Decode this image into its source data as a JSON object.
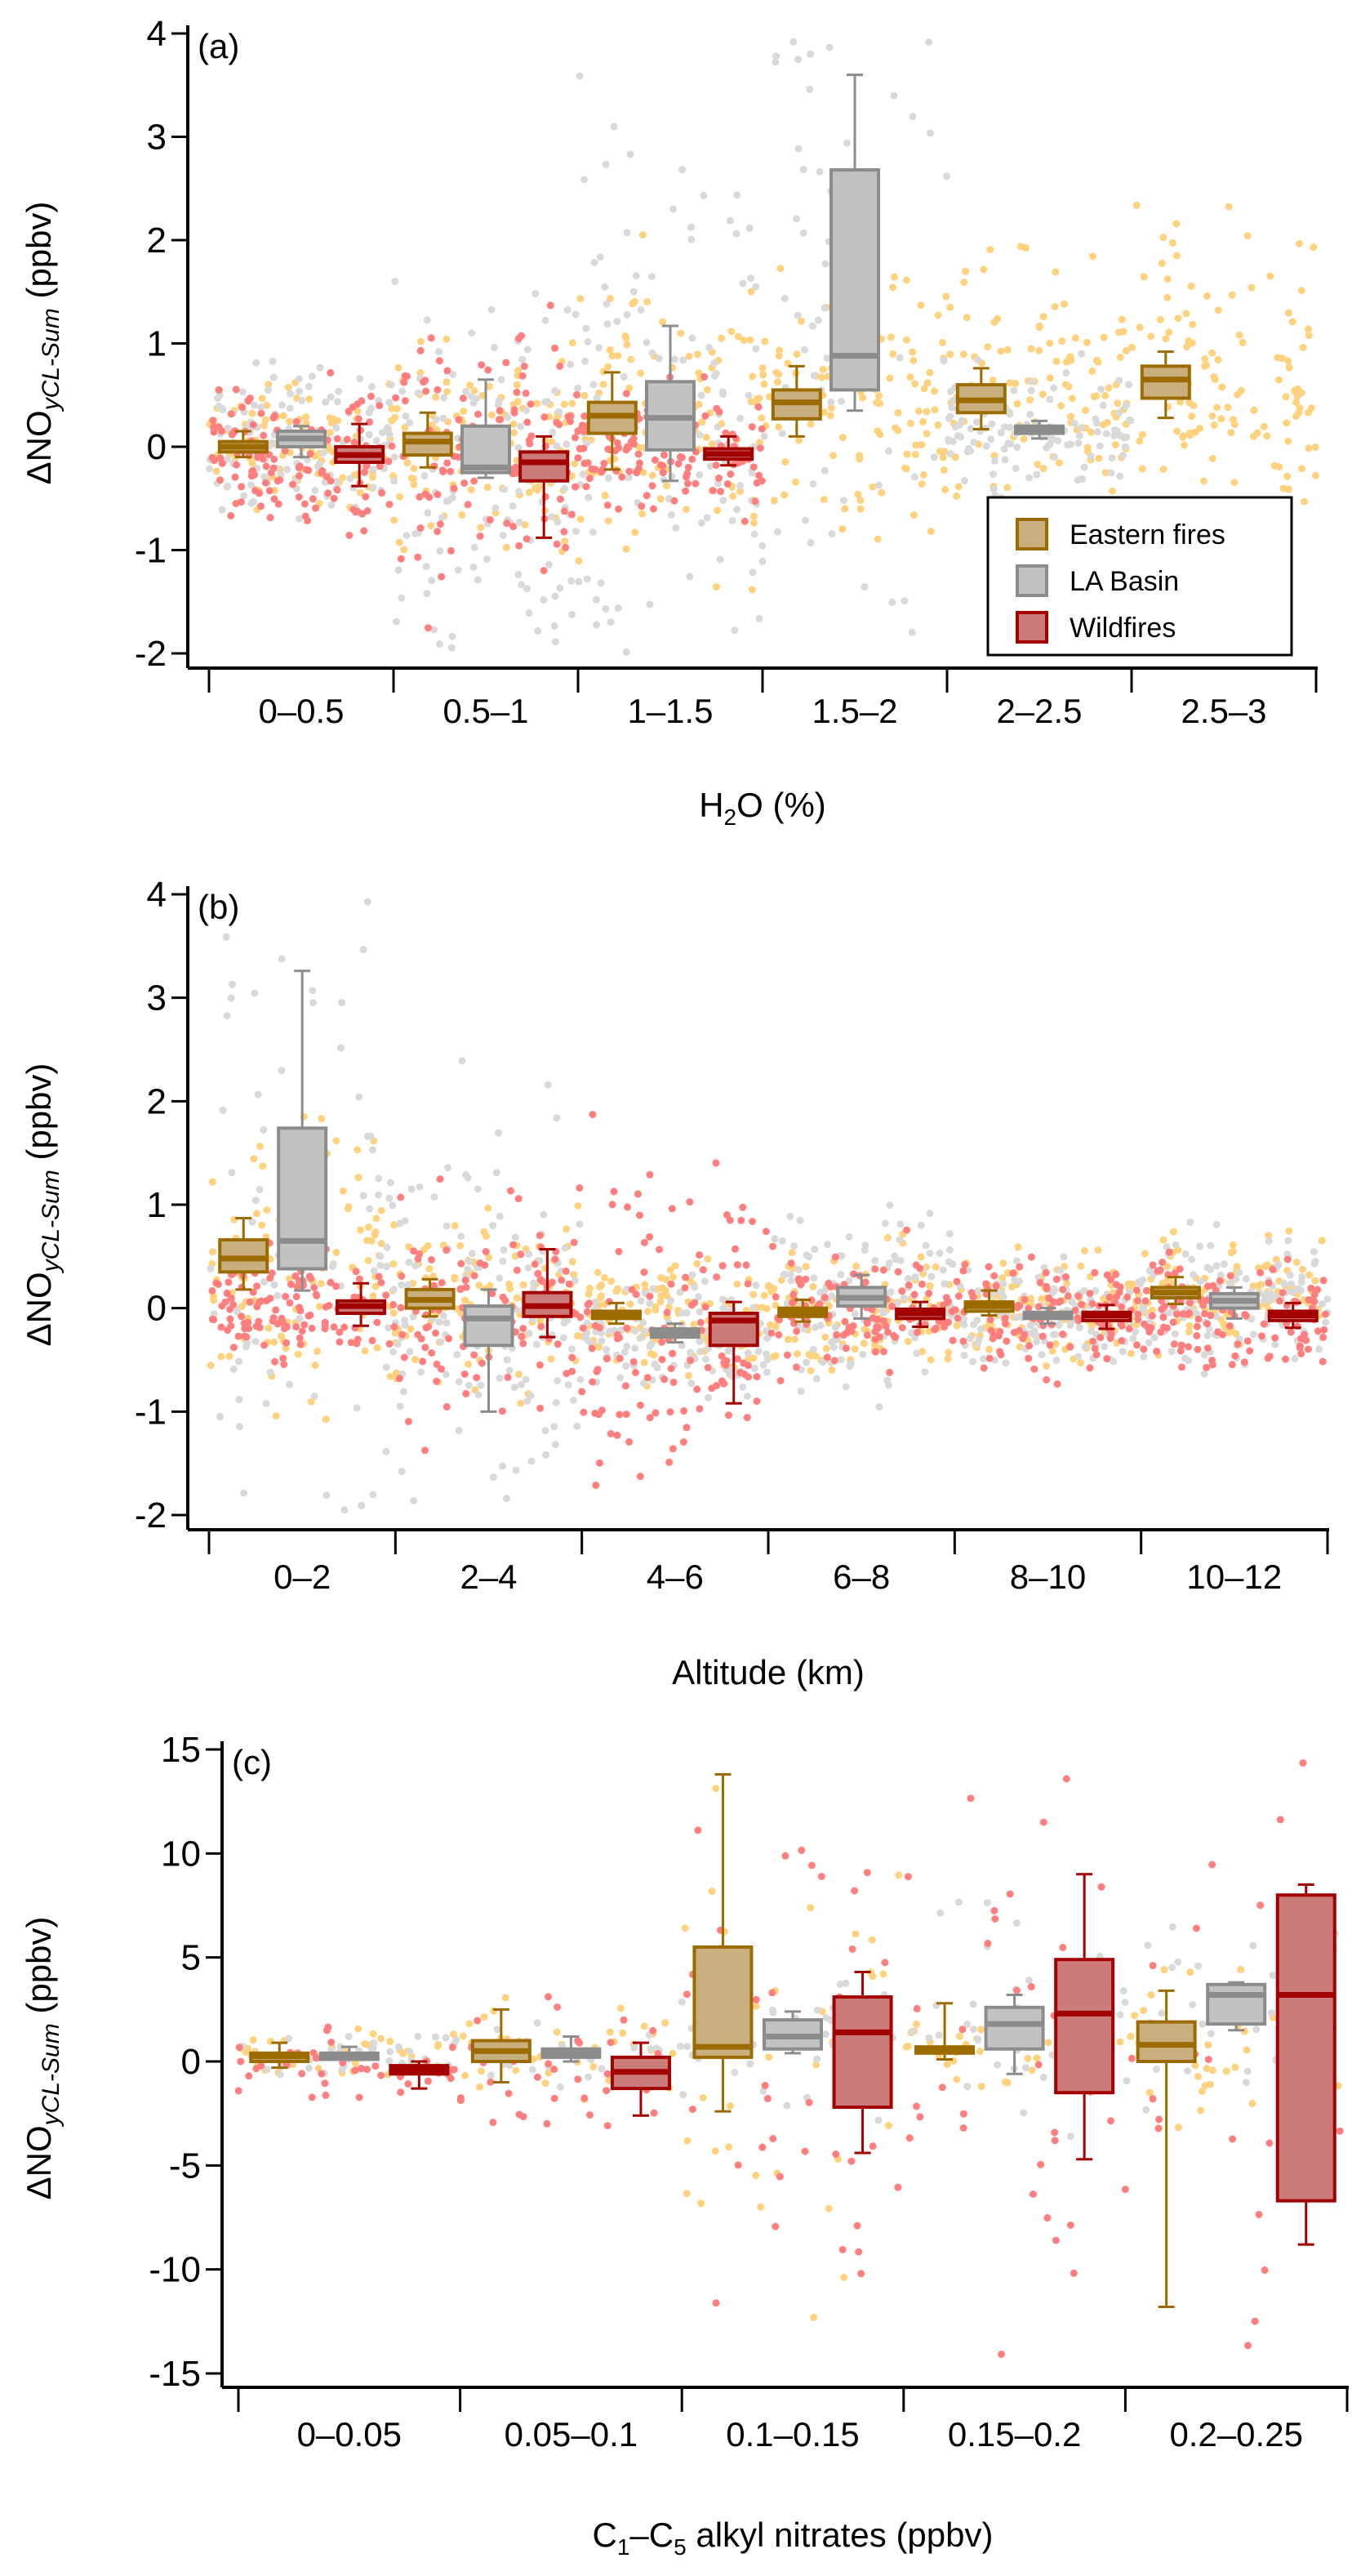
{
  "colors": {
    "eastern_fill": "#c9ae7e",
    "eastern_stroke": "#9c6b00",
    "eastern_points": "#ffd27f",
    "la_fill": "#c2c2c2",
    "la_stroke": "#8c8c8c",
    "la_points": "#d9d9d9",
    "wild_fill": "#cc7b7b",
    "wild_stroke": "#a30000",
    "wild_points": "#ff7f7f"
  },
  "legend": {
    "placement": "lower-right of panel (a)",
    "entries": [
      "Eastern fires",
      "LA Basin",
      "Wildfires"
    ]
  },
  "y_title": {
    "main": "ΔNO",
    "sub": "yCL-Sum",
    "unit": " (ppbv)"
  },
  "chart_data": [
    {
      "type": "box",
      "panel_label": "(a)",
      "xlabel": {
        "pre": "H",
        "sub": "2",
        "post": "O (%)"
      },
      "ylim": [
        -2,
        4
      ],
      "yticks": [
        -2,
        -1,
        0,
        1,
        2,
        3,
        4
      ],
      "categories": [
        "0–0.5",
        "0.5–1",
        "1–1.5",
        "1.5–2",
        "2–2.5",
        "2.5–3"
      ],
      "stats_order": [
        "whisker_low",
        "q1",
        "median",
        "q3",
        "whisker_high"
      ],
      "series": [
        {
          "name": "Eastern fires",
          "boxes": [
            [
              -0.1,
              -0.05,
              0.0,
              0.05,
              0.15
            ],
            [
              -0.2,
              -0.08,
              0.05,
              0.13,
              0.33
            ],
            [
              -0.22,
              0.13,
              0.3,
              0.43,
              0.72
            ],
            [
              0.1,
              0.27,
              0.43,
              0.55,
              0.78
            ],
            [
              0.17,
              0.33,
              0.45,
              0.6,
              0.76
            ],
            [
              0.28,
              0.47,
              0.65,
              0.78,
              0.92
            ]
          ]
        },
        {
          "name": "LA Basin",
          "boxes": [
            [
              -0.1,
              0.0,
              0.08,
              0.15,
              0.2
            ],
            [
              -0.3,
              -0.25,
              -0.2,
              0.2,
              0.65
            ],
            [
              -0.33,
              -0.03,
              0.28,
              0.63,
              1.17
            ],
            [
              0.35,
              0.55,
              0.88,
              2.68,
              3.6
            ],
            [
              0.08,
              0.13,
              0.17,
              0.2,
              0.25
            ],
            null
          ]
        },
        {
          "name": "Wildfires",
          "boxes": [
            [
              -0.38,
              -0.15,
              -0.08,
              0.0,
              0.22
            ],
            [
              -0.88,
              -0.33,
              -0.15,
              -0.05,
              0.1
            ],
            [
              -0.18,
              -0.12,
              -0.07,
              -0.02,
              0.1
            ],
            null,
            null,
            null
          ]
        }
      ]
    },
    {
      "type": "box",
      "panel_label": "(b)",
      "xlabel": {
        "pre": "Altitude (km)",
        "sub": "",
        "post": ""
      },
      "ylim": [
        -2,
        4
      ],
      "yticks": [
        -2,
        -1,
        0,
        1,
        2,
        3,
        4
      ],
      "categories": [
        "0–2",
        "2–4",
        "4–6",
        "6–8",
        "8–10",
        "10–12"
      ],
      "stats_order": [
        "whisker_low",
        "q1",
        "median",
        "q3",
        "whisker_high"
      ],
      "series": [
        {
          "name": "Eastern fires",
          "boxes": [
            [
              0.18,
              0.35,
              0.48,
              0.66,
              0.87
            ],
            [
              -0.08,
              0.0,
              0.08,
              0.18,
              0.28
            ],
            [
              -0.15,
              -0.1,
              -0.06,
              -0.03,
              0.05
            ],
            [
              -0.13,
              -0.08,
              -0.04,
              0.0,
              0.08
            ],
            [
              -0.07,
              -0.03,
              0.02,
              0.06,
              0.17
            ],
            [
              0.04,
              0.1,
              0.15,
              0.2,
              0.3
            ]
          ]
        },
        {
          "name": "LA Basin",
          "boxes": [
            [
              0.17,
              0.38,
              0.65,
              1.74,
              3.26
            ],
            [
              -1.0,
              -0.36,
              -0.1,
              0.02,
              0.18
            ],
            [
              -0.33,
              -0.28,
              -0.24,
              -0.2,
              -0.15
            ],
            [
              -0.1,
              0.02,
              0.1,
              0.2,
              0.32
            ],
            [
              -0.15,
              -0.1,
              -0.07,
              -0.04,
              0.0
            ],
            [
              -0.1,
              0.0,
              0.07,
              0.14,
              0.2
            ]
          ]
        },
        {
          "name": "Wildfires",
          "boxes": [
            [
              -0.17,
              -0.05,
              0.02,
              0.07,
              0.24
            ],
            [
              -0.28,
              -0.08,
              0.02,
              0.15,
              0.57
            ],
            [
              -0.92,
              -0.36,
              -0.12,
              -0.05,
              0.06
            ],
            [
              -0.18,
              -0.1,
              -0.05,
              -0.01,
              0.06
            ],
            [
              -0.2,
              -0.12,
              -0.07,
              -0.04,
              0.03
            ],
            [
              -0.19,
              -0.12,
              -0.07,
              -0.03,
              0.05
            ]
          ]
        }
      ]
    },
    {
      "type": "box",
      "panel_label": "(c)",
      "xlabel": {
        "pre": "C",
        "sub": "1",
        "mid": "–C",
        "sub2": "5",
        "post": " alkyl nitrates (ppbv)"
      },
      "ylim": [
        -15,
        15
      ],
      "yticks": [
        -15,
        -10,
        -5,
        0,
        5,
        10,
        15
      ],
      "categories": [
        "0–0.05",
        "0.05–0.1",
        "0.1–0.15",
        "0.15–0.2",
        "0.2–0.25"
      ],
      "stats_order": [
        "whisker_low",
        "q1",
        "median",
        "q3",
        "whisker_high"
      ],
      "series": [
        {
          "name": "Eastern fires",
          "boxes": [
            [
              -0.3,
              0.0,
              0.25,
              0.4,
              0.9
            ],
            [
              -1.0,
              0.0,
              0.5,
              1.0,
              2.5
            ],
            [
              -2.4,
              0.2,
              0.7,
              5.5,
              13.8
            ],
            [
              0.1,
              0.4,
              0.6,
              0.7,
              2.8
            ],
            [
              -11.8,
              0.0,
              0.8,
              1.9,
              3.4
            ]
          ]
        },
        {
          "name": "LA Basin",
          "boxes": [
            [
              0.2,
              0.1,
              0.3,
              0.4,
              0.7
            ],
            [
              0.0,
              0.2,
              0.4,
              0.6,
              1.2
            ],
            [
              0.4,
              0.6,
              1.2,
              2.0,
              2.4
            ],
            [
              -0.6,
              0.6,
              1.8,
              2.6,
              3.2
            ],
            [
              1.5,
              1.8,
              3.2,
              3.7,
              3.8
            ]
          ]
        },
        {
          "name": "Wildfires",
          "boxes": [
            [
              -1.3,
              -0.6,
              -0.4,
              -0.2,
              0.0
            ],
            [
              -2.6,
              -1.3,
              -0.5,
              0.2,
              0.9
            ],
            [
              -4.4,
              -2.2,
              1.4,
              3.1,
              4.3
            ],
            [
              -4.7,
              -1.5,
              2.3,
              4.9,
              9.0
            ],
            [
              -8.8,
              -6.7,
              3.2,
              8.0,
              8.5
            ]
          ]
        }
      ]
    }
  ]
}
